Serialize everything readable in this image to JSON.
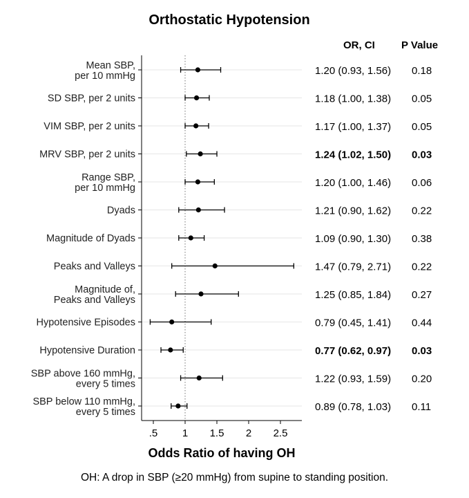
{
  "title": "Orthostatic Hypotension",
  "footnote": "OH: A drop in SBP (≥20 mmHg) from supine to standing position.",
  "columns": {
    "ci_header": "OR, CI",
    "p_header": "P Value"
  },
  "chart_data": {
    "type": "forest",
    "title": "Orthostatic Hypotension",
    "xlabel": "Odds Ratio of having OH",
    "ylabel": "",
    "xlim": [
      0.4,
      2.8
    ],
    "xticks": [
      {
        "value": 0.5,
        "label": ".5"
      },
      {
        "value": 1,
        "label": "1"
      },
      {
        "value": 1.5,
        "label": "1.5"
      },
      {
        "value": 2,
        "label": "2"
      },
      {
        "value": 2.5,
        "label": "2.5"
      }
    ],
    "reference_line": 1,
    "grid": true,
    "rows": [
      {
        "label": [
          "Mean SBP,",
          "per 10 mmHg"
        ],
        "or": 1.2,
        "lo": 0.93,
        "hi": 1.56,
        "ci_text": "1.20 (0.93, 1.56)",
        "p": "0.18",
        "bold": false
      },
      {
        "label": [
          "SD SBP, per 2 units"
        ],
        "or": 1.18,
        "lo": 1.0,
        "hi": 1.38,
        "ci_text": "1.18 (1.00, 1.38)",
        "p": "0.05",
        "bold": false
      },
      {
        "label": [
          "VIM SBP, per 2 units"
        ],
        "or": 1.17,
        "lo": 1.0,
        "hi": 1.37,
        "ci_text": "1.17 (1.00, 1.37)",
        "p": "0.05",
        "bold": false
      },
      {
        "label": [
          "MRV SBP, per 2 units"
        ],
        "or": 1.24,
        "lo": 1.02,
        "hi": 1.5,
        "ci_text": "1.24 (1.02, 1.50)",
        "p": "0.03",
        "bold": true
      },
      {
        "label": [
          "Range SBP,",
          "per 10 mmHg"
        ],
        "or": 1.2,
        "lo": 1.0,
        "hi": 1.46,
        "ci_text": "1.20 (1.00, 1.46)",
        "p": "0.06",
        "bold": false
      },
      {
        "label": [
          "Dyads"
        ],
        "or": 1.21,
        "lo": 0.9,
        "hi": 1.62,
        "ci_text": "1.21 (0.90, 1.62)",
        "p": "0.22",
        "bold": false
      },
      {
        "label": [
          "Magnitude of Dyads"
        ],
        "or": 1.09,
        "lo": 0.9,
        "hi": 1.3,
        "ci_text": "1.09 (0.90, 1.30)",
        "p": "0.38",
        "bold": false
      },
      {
        "label": [
          "Peaks and Valleys"
        ],
        "or": 1.47,
        "lo": 0.79,
        "hi": 2.71,
        "ci_text": "1.47 (0.79, 2.71)",
        "p": "0.22",
        "bold": false
      },
      {
        "label": [
          "Magnitude of,",
          "Peaks and Valleys"
        ],
        "or": 1.25,
        "lo": 0.85,
        "hi": 1.84,
        "ci_text": "1.25 (0.85, 1.84)",
        "p": "0.27",
        "bold": false
      },
      {
        "label": [
          "Hypotensive Episodes"
        ],
        "or": 0.79,
        "lo": 0.45,
        "hi": 1.41,
        "ci_text": "0.79 (0.45, 1.41)",
        "p": "0.44",
        "bold": false
      },
      {
        "label": [
          "Hypotensive Duration"
        ],
        "or": 0.77,
        "lo": 0.62,
        "hi": 0.97,
        "ci_text": "0.77 (0.62, 0.97)",
        "p": "0.03",
        "bold": true
      },
      {
        "label": [
          "SBP above 160 mmHg,",
          "every 5 times"
        ],
        "or": 1.22,
        "lo": 0.93,
        "hi": 1.59,
        "ci_text": "1.22 (0.93, 1.59)",
        "p": "0.20",
        "bold": false
      },
      {
        "label": [
          "SBP below 110 mmHg,",
          "every 5 times"
        ],
        "or": 0.89,
        "lo": 0.78,
        "hi": 1.03,
        "ci_text": "0.89 (0.78, 1.03)",
        "p": "0.11",
        "bold": false
      }
    ]
  }
}
